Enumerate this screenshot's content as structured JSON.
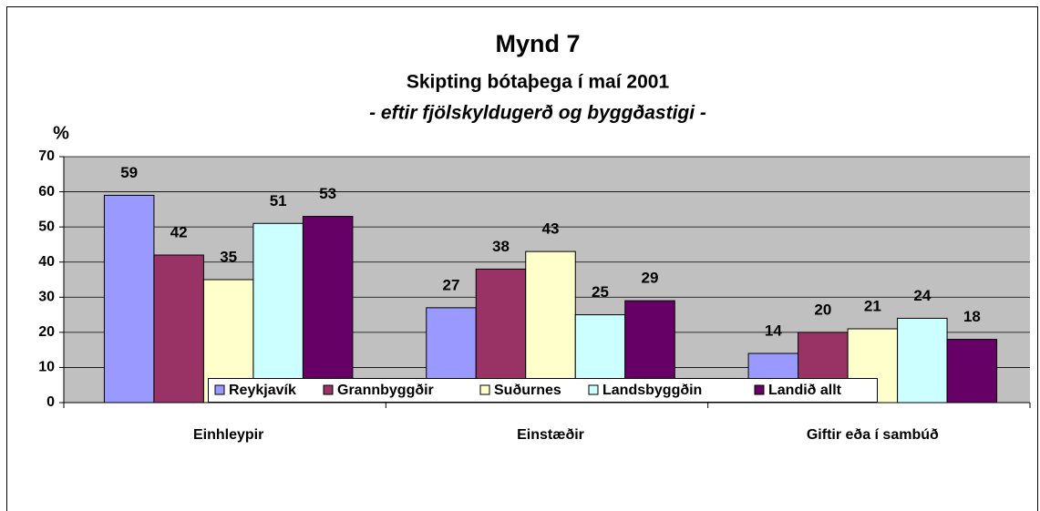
{
  "chart_data": {
    "type": "bar",
    "title": "Mynd 7",
    "subtitle": "Skipting bótaþega í maí 2001",
    "subtitle2": "- eftir fjölskyldugerð og byggðastigi -",
    "y_label": "%",
    "categories": [
      "Einhleypir",
      "Einstæðir",
      "Giftir eða í sambúð"
    ],
    "series": [
      {
        "name": "Reykjavík",
        "color": "#9999ff",
        "values": [
          59,
          27,
          14
        ]
      },
      {
        "name": "Grannbyggðir",
        "color": "#993366",
        "values": [
          42,
          38,
          20
        ]
      },
      {
        "name": "Suðurnes",
        "color": "#ffffcc",
        "values": [
          35,
          43,
          21
        ]
      },
      {
        "name": "Landsbyggðin",
        "color": "#ccffff",
        "values": [
          51,
          25,
          24
        ]
      },
      {
        "name": "Landið allt",
        "color": "#660066",
        "values": [
          53,
          29,
          18
        ]
      }
    ],
    "ylim": [
      0,
      70
    ],
    "yticks": [
      0,
      10,
      20,
      30,
      40,
      50,
      60,
      70
    ],
    "grid": true,
    "legend": "bottom"
  }
}
